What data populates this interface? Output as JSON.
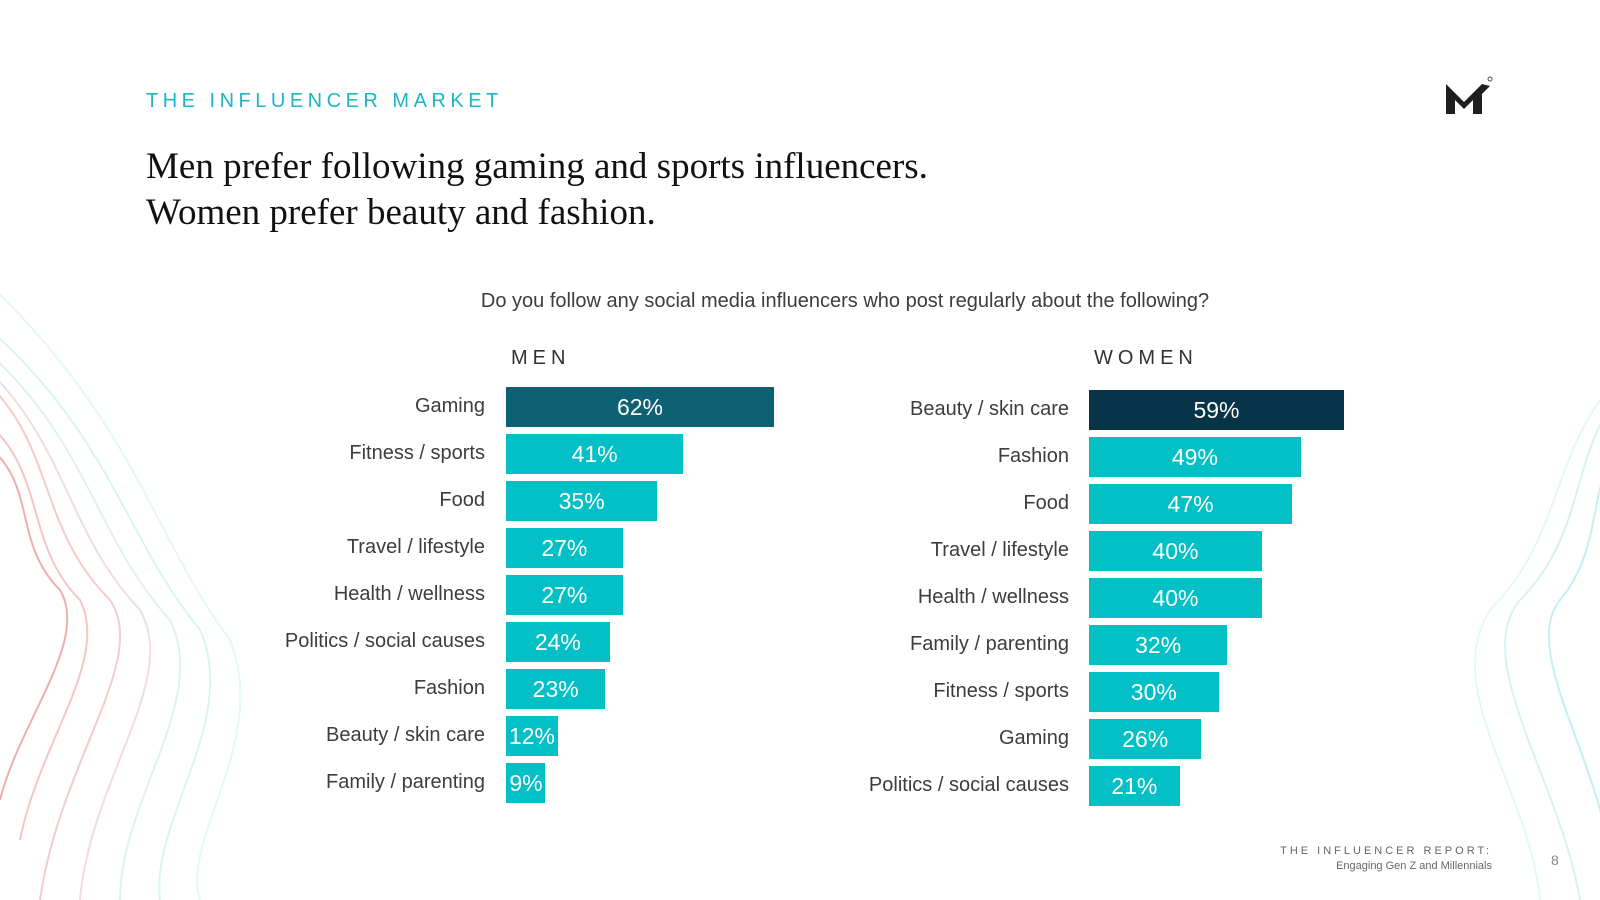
{
  "header": {
    "eyebrow": "THE INFLUENCER MARKET",
    "title_line1": "Men prefer following gaming and sports influencers.",
    "title_line2": "Women prefer beauty and fashion."
  },
  "question": "Do you follow any social media influencers who post regularly about the following?",
  "footer": {
    "report_title": "THE INFLUENCER REPORT:",
    "report_subtitle": "Engaging Gen Z and Millennials",
    "page_number": "8"
  },
  "colors": {
    "accent": "#1ab7c7",
    "bar": "#03bfc6",
    "men_top": "#0e6173",
    "women_top": "#073449"
  },
  "chart_data": [
    {
      "type": "bar",
      "orientation": "horizontal",
      "title": "MEN",
      "categories": [
        "Gaming",
        "Fitness / sports",
        "Food",
        "Travel / lifestyle",
        "Health / wellness",
        "Politics / social causes",
        "Fashion",
        "Beauty / skin care",
        "Family / parenting"
      ],
      "values": [
        62,
        41,
        35,
        27,
        27,
        24,
        23,
        12,
        9
      ],
      "labels": [
        "62%",
        "41%",
        "35%",
        "27%",
        "27%",
        "24%",
        "23%",
        "12%",
        "9%"
      ],
      "unit": "%",
      "xlim": [
        0,
        62
      ]
    },
    {
      "type": "bar",
      "orientation": "horizontal",
      "title": "WOMEN",
      "categories": [
        "Beauty / skin care",
        "Fashion",
        "Food",
        "Travel / lifestyle",
        "Health / wellness",
        "Family / parenting",
        "Fitness / sports",
        "Gaming",
        "Politics / social causes"
      ],
      "values": [
        59,
        49,
        47,
        40,
        40,
        32,
        30,
        26,
        21
      ],
      "labels": [
        "59%",
        "49%",
        "47%",
        "40%",
        "40%",
        "32%",
        "30%",
        "26%",
        "21%"
      ],
      "unit": "%",
      "xlim": [
        0,
        59
      ]
    }
  ]
}
